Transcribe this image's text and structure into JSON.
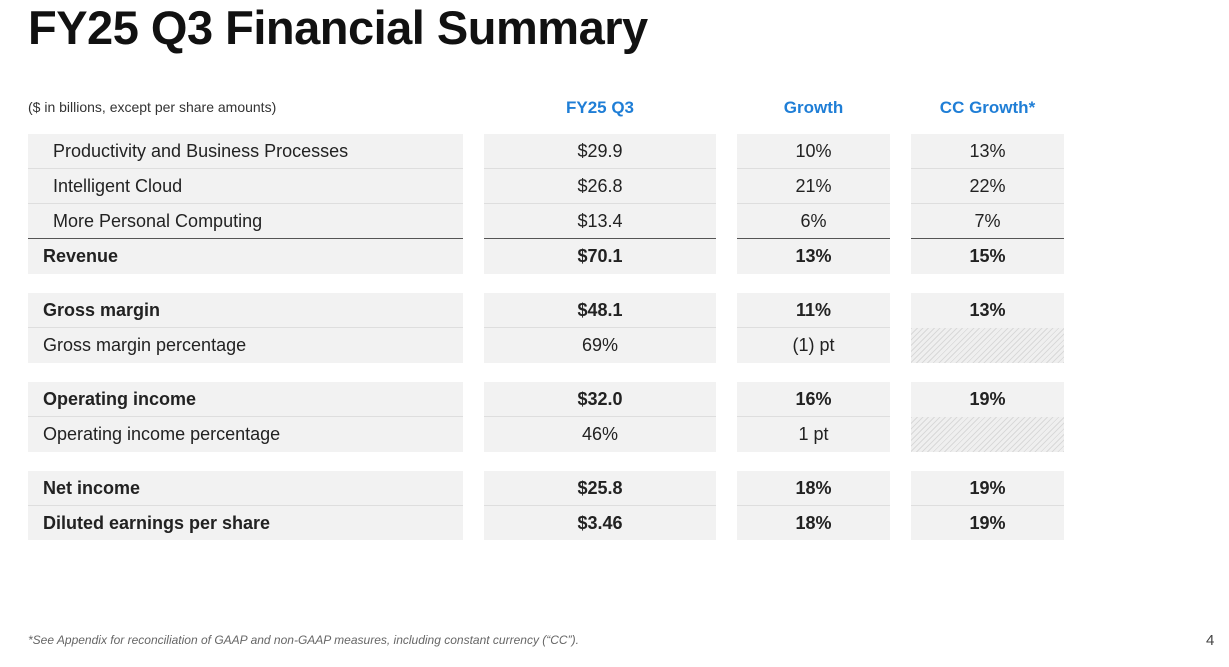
{
  "slide": {
    "title": "FY25 Q3 Financial Summary",
    "units_note": "($ in billions, except per share amounts)",
    "page_number": "4",
    "footnote": "*See Appendix for reconciliation of GAAP and non-GAAP measures, including constant currency (“CC”)."
  },
  "columns": {
    "value": "FY25 Q3",
    "growth": "Growth",
    "cc_growth": "CC Growth*"
  },
  "rows": [
    {
      "label": "Productivity and Business Processes",
      "value": "$29.9",
      "growth": "10%",
      "cc_growth": "13%"
    },
    {
      "label": "Intelligent Cloud",
      "value": "$26.8",
      "growth": "21%",
      "cc_growth": "22%"
    },
    {
      "label": "More Personal Computing",
      "value": "$13.4",
      "growth": "6%",
      "cc_growth": "7%"
    },
    {
      "label": "Revenue",
      "value": "$70.1",
      "growth": "13%",
      "cc_growth": "15%"
    },
    {
      "label": "Gross margin",
      "value": "$48.1",
      "growth": "11%",
      "cc_growth": "13%"
    },
    {
      "label": "Gross margin percentage",
      "value": "69%",
      "growth": "(1) pt",
      "cc_growth": ""
    },
    {
      "label": "Operating income",
      "value": "$32.0",
      "growth": "16%",
      "cc_growth": "19%"
    },
    {
      "label": "Operating income percentage",
      "value": "46%",
      "growth": "1 pt",
      "cc_growth": ""
    },
    {
      "label": "Net income",
      "value": "$25.8",
      "growth": "18%",
      "cc_growth": "19%"
    },
    {
      "label": "Diluted earnings per share",
      "value": "$3.46",
      "growth": "18%",
      "cc_growth": "19%"
    }
  ]
}
